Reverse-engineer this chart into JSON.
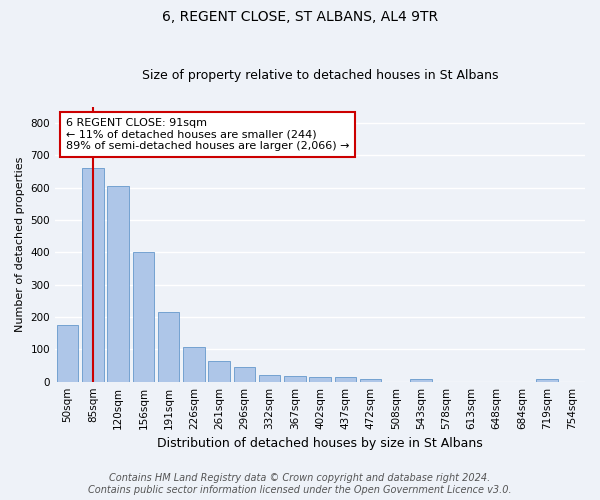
{
  "title": "6, REGENT CLOSE, ST ALBANS, AL4 9TR",
  "subtitle": "Size of property relative to detached houses in St Albans",
  "xlabel": "Distribution of detached houses by size in St Albans",
  "ylabel": "Number of detached properties",
  "categories": [
    "50sqm",
    "85sqm",
    "120sqm",
    "156sqm",
    "191sqm",
    "226sqm",
    "261sqm",
    "296sqm",
    "332sqm",
    "367sqm",
    "402sqm",
    "437sqm",
    "472sqm",
    "508sqm",
    "543sqm",
    "578sqm",
    "613sqm",
    "648sqm",
    "684sqm",
    "719sqm",
    "754sqm"
  ],
  "values": [
    175,
    660,
    605,
    400,
    215,
    108,
    63,
    46,
    20,
    17,
    15,
    15,
    8,
    0,
    8,
    0,
    0,
    0,
    0,
    8,
    0
  ],
  "bar_color": "#aec6e8",
  "bar_edge_color": "#6699cc",
  "vline_x_index": 1,
  "vline_color": "#cc0000",
  "ylim": [
    0,
    850
  ],
  "yticks": [
    0,
    100,
    200,
    300,
    400,
    500,
    600,
    700,
    800
  ],
  "annotation_line1": "6 REGENT CLOSE: 91sqm",
  "annotation_line2": "← 11% of detached houses are smaller (244)",
  "annotation_line3": "89% of semi-detached houses are larger (2,066) →",
  "annotation_box_color": "#ffffff",
  "annotation_box_edge": "#cc0000",
  "footer_line1": "Contains HM Land Registry data © Crown copyright and database right 2024.",
  "footer_line2": "Contains public sector information licensed under the Open Government Licence v3.0.",
  "bg_color": "#eef2f8",
  "grid_color": "#ffffff",
  "title_fontsize": 10,
  "subtitle_fontsize": 9,
  "ylabel_fontsize": 8,
  "xlabel_fontsize": 9,
  "tick_fontsize": 7.5,
  "annotation_fontsize": 8,
  "footer_fontsize": 7
}
